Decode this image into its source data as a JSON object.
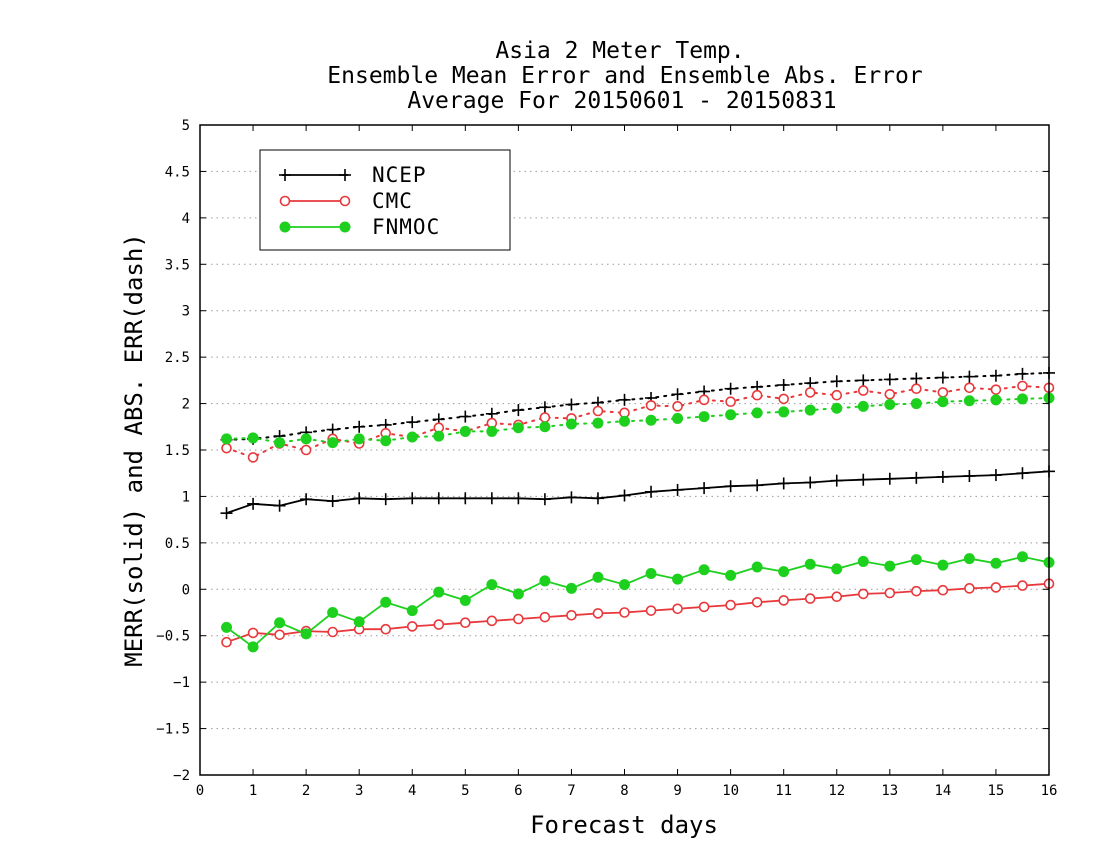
{
  "title_lines": [
    "Asia 2 Meter Temp.",
    "Ensemble Mean Error and Ensemble Abs. Error",
    "Average For 20150601 - 20150831"
  ],
  "chart_data": {
    "type": "line",
    "xlabel": "Forecast days",
    "ylabel": "MERR(solid) and ABS. ERR(dash)",
    "xlim": [
      0,
      16
    ],
    "ylim": [
      -2,
      5
    ],
    "x_ticks": [
      0,
      1,
      2,
      3,
      4,
      5,
      6,
      7,
      8,
      9,
      10,
      11,
      12,
      13,
      14,
      15,
      16
    ],
    "x_tick_labels": [
      "0",
      "1",
      "2",
      "3",
      "4",
      "5",
      "6",
      "7",
      "8",
      "9",
      "10",
      "11",
      "12",
      "13",
      "14",
      "15",
      "16"
    ],
    "y_ticks": [
      -2,
      -1.5,
      -1,
      -0.5,
      0,
      0.5,
      1,
      1.5,
      2,
      2.5,
      3,
      3.5,
      4,
      4.5,
      5
    ],
    "y_tick_labels": [
      "−2",
      "−1.5",
      "−1",
      "−0.5",
      "0",
      "0.5",
      "1",
      "1.5",
      "2",
      "2.5",
      "3",
      "3.5",
      "4",
      "4.5",
      "5"
    ],
    "grid": "horizontal dotted",
    "legend_position": "top-left",
    "x": [
      0.5,
      1,
      1.5,
      2,
      2.5,
      3,
      3.5,
      4,
      4.5,
      5,
      5.5,
      6,
      6.5,
      7,
      7.5,
      8,
      8.5,
      9,
      9.5,
      10,
      10.5,
      11,
      11.5,
      12,
      12.5,
      13,
      13.5,
      14,
      14.5,
      15,
      15.5,
      16
    ],
    "series": [
      {
        "name": "NCEP",
        "color": "#000000",
        "marker": "plus",
        "merr": [
          0.82,
          0.92,
          0.9,
          0.97,
          0.95,
          0.98,
          0.97,
          0.98,
          0.98,
          0.98,
          0.98,
          0.98,
          0.97,
          0.99,
          0.98,
          1.01,
          1.05,
          1.07,
          1.09,
          1.11,
          1.12,
          1.14,
          1.15,
          1.17,
          1.18,
          1.19,
          1.2,
          1.21,
          1.22,
          1.23,
          1.25,
          1.27
        ],
        "abs_err": [
          1.61,
          1.62,
          1.65,
          1.69,
          1.72,
          1.75,
          1.77,
          1.8,
          1.83,
          1.86,
          1.89,
          1.93,
          1.96,
          1.99,
          2.01,
          2.04,
          2.06,
          2.1,
          2.13,
          2.16,
          2.18,
          2.2,
          2.22,
          2.24,
          2.25,
          2.26,
          2.27,
          2.28,
          2.29,
          2.3,
          2.32,
          2.33
        ]
      },
      {
        "name": "CMC",
        "color": "#e8383b",
        "marker": "open-circle",
        "merr": [
          -0.57,
          -0.47,
          -0.49,
          -0.45,
          -0.46,
          -0.43,
          -0.43,
          -0.4,
          -0.38,
          -0.36,
          -0.34,
          -0.32,
          -0.3,
          -0.28,
          -0.26,
          -0.25,
          -0.23,
          -0.21,
          -0.19,
          -0.17,
          -0.14,
          -0.12,
          -0.1,
          -0.08,
          -0.05,
          -0.04,
          -0.02,
          -0.01,
          0.01,
          0.02,
          0.04,
          0.06
        ],
        "abs_err": [
          1.52,
          1.42,
          1.57,
          1.5,
          1.62,
          1.57,
          1.68,
          1.64,
          1.74,
          1.7,
          1.79,
          1.77,
          1.85,
          1.84,
          1.92,
          1.9,
          1.98,
          1.97,
          2.04,
          2.02,
          2.09,
          2.05,
          2.12,
          2.09,
          2.14,
          2.1,
          2.16,
          2.12,
          2.17,
          2.15,
          2.19,
          2.17
        ]
      },
      {
        "name": "FNMOC",
        "color": "#1ed01e",
        "marker": "filled-circle",
        "merr": [
          -0.41,
          -0.62,
          -0.36,
          -0.48,
          -0.25,
          -0.35,
          -0.14,
          -0.23,
          -0.03,
          -0.12,
          0.05,
          -0.05,
          0.09,
          0.01,
          0.13,
          0.05,
          0.17,
          0.11,
          0.21,
          0.15,
          0.24,
          0.19,
          0.27,
          0.22,
          0.3,
          0.25,
          0.32,
          0.26,
          0.33,
          0.28,
          0.35,
          0.29
        ],
        "abs_err": [
          1.62,
          1.63,
          1.58,
          1.62,
          1.58,
          1.62,
          1.6,
          1.64,
          1.65,
          1.7,
          1.7,
          1.74,
          1.75,
          1.78,
          1.79,
          1.81,
          1.82,
          1.84,
          1.86,
          1.88,
          1.9,
          1.91,
          1.93,
          1.95,
          1.97,
          1.99,
          2.0,
          2.02,
          2.03,
          2.04,
          2.05,
          2.06
        ]
      }
    ]
  }
}
